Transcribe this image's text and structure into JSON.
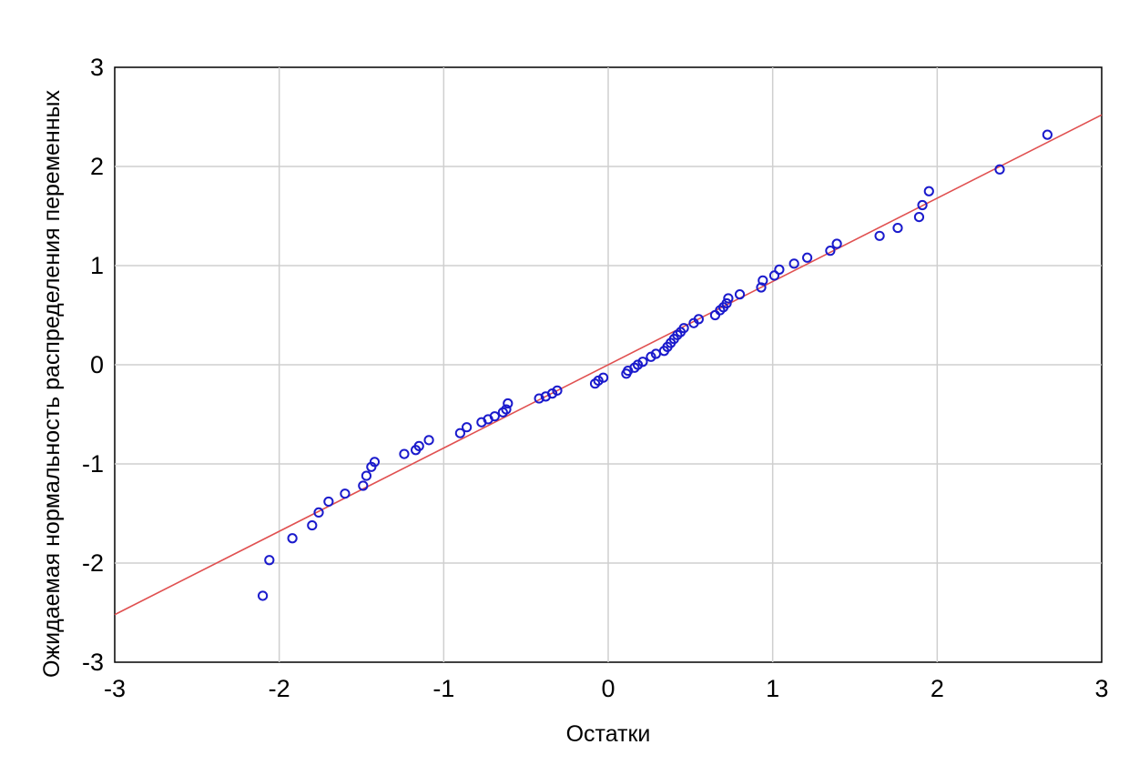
{
  "chart_data": {
    "type": "scatter",
    "xlabel": "Остатки",
    "ylabel": "Ожидаемая нормальность распределения переменных",
    "xlim": [
      -3,
      3
    ],
    "ylim": [
      -3,
      3
    ],
    "xticks": [
      -3,
      -2,
      -1,
      0,
      1,
      2,
      3
    ],
    "yticks": [
      -3,
      -2,
      -1,
      0,
      1,
      2,
      3
    ],
    "xtick_labels": [
      "-3",
      "-2",
      "-1",
      "0",
      "1",
      "2",
      "3"
    ],
    "ytick_labels": [
      "-3",
      "-2",
      "-1",
      "0",
      "1",
      "2",
      "3"
    ],
    "grid": true,
    "point_color": "#1a1acc",
    "line_color": "#e05050",
    "reference_line": {
      "x": [
        -3,
        3
      ],
      "y": [
        -2.52,
        2.52
      ]
    },
    "points": [
      [
        -2.1,
        -2.33
      ],
      [
        -2.06,
        -1.97
      ],
      [
        -1.92,
        -1.75
      ],
      [
        -1.8,
        -1.62
      ],
      [
        -1.76,
        -1.49
      ],
      [
        -1.7,
        -1.38
      ],
      [
        -1.6,
        -1.3
      ],
      [
        -1.49,
        -1.22
      ],
      [
        -1.47,
        -1.12
      ],
      [
        -1.44,
        -1.03
      ],
      [
        -1.42,
        -0.98
      ],
      [
        -1.24,
        -0.9
      ],
      [
        -1.17,
        -0.86
      ],
      [
        -1.15,
        -0.82
      ],
      [
        -1.09,
        -0.76
      ],
      [
        -0.9,
        -0.69
      ],
      [
        -0.86,
        -0.63
      ],
      [
        -0.77,
        -0.58
      ],
      [
        -0.73,
        -0.55
      ],
      [
        -0.69,
        -0.52
      ],
      [
        -0.64,
        -0.48
      ],
      [
        -0.62,
        -0.45
      ],
      [
        -0.61,
        -0.39
      ],
      [
        -0.42,
        -0.34
      ],
      [
        -0.38,
        -0.32
      ],
      [
        -0.34,
        -0.29
      ],
      [
        -0.31,
        -0.26
      ],
      [
        -0.08,
        -0.19
      ],
      [
        -0.06,
        -0.16
      ],
      [
        -0.03,
        -0.13
      ],
      [
        0.11,
        -0.09
      ],
      [
        0.12,
        -0.06
      ],
      [
        0.16,
        -0.03
      ],
      [
        0.18,
        0.0
      ],
      [
        0.21,
        0.03
      ],
      [
        0.26,
        0.08
      ],
      [
        0.29,
        0.11
      ],
      [
        0.34,
        0.14
      ],
      [
        0.36,
        0.18
      ],
      [
        0.38,
        0.22
      ],
      [
        0.4,
        0.26
      ],
      [
        0.42,
        0.3
      ],
      [
        0.44,
        0.33
      ],
      [
        0.46,
        0.37
      ],
      [
        0.52,
        0.42
      ],
      [
        0.55,
        0.46
      ],
      [
        0.65,
        0.5
      ],
      [
        0.68,
        0.55
      ],
      [
        0.7,
        0.58
      ],
      [
        0.72,
        0.62
      ],
      [
        0.73,
        0.67
      ],
      [
        0.8,
        0.71
      ],
      [
        0.93,
        0.78
      ],
      [
        0.94,
        0.85
      ],
      [
        1.01,
        0.9
      ],
      [
        1.04,
        0.96
      ],
      [
        1.13,
        1.02
      ],
      [
        1.21,
        1.08
      ],
      [
        1.35,
        1.15
      ],
      [
        1.39,
        1.22
      ],
      [
        1.65,
        1.3
      ],
      [
        1.76,
        1.38
      ],
      [
        1.89,
        1.49
      ],
      [
        1.91,
        1.61
      ],
      [
        1.95,
        1.75
      ],
      [
        2.38,
        1.97
      ],
      [
        2.67,
        2.32
      ]
    ]
  }
}
